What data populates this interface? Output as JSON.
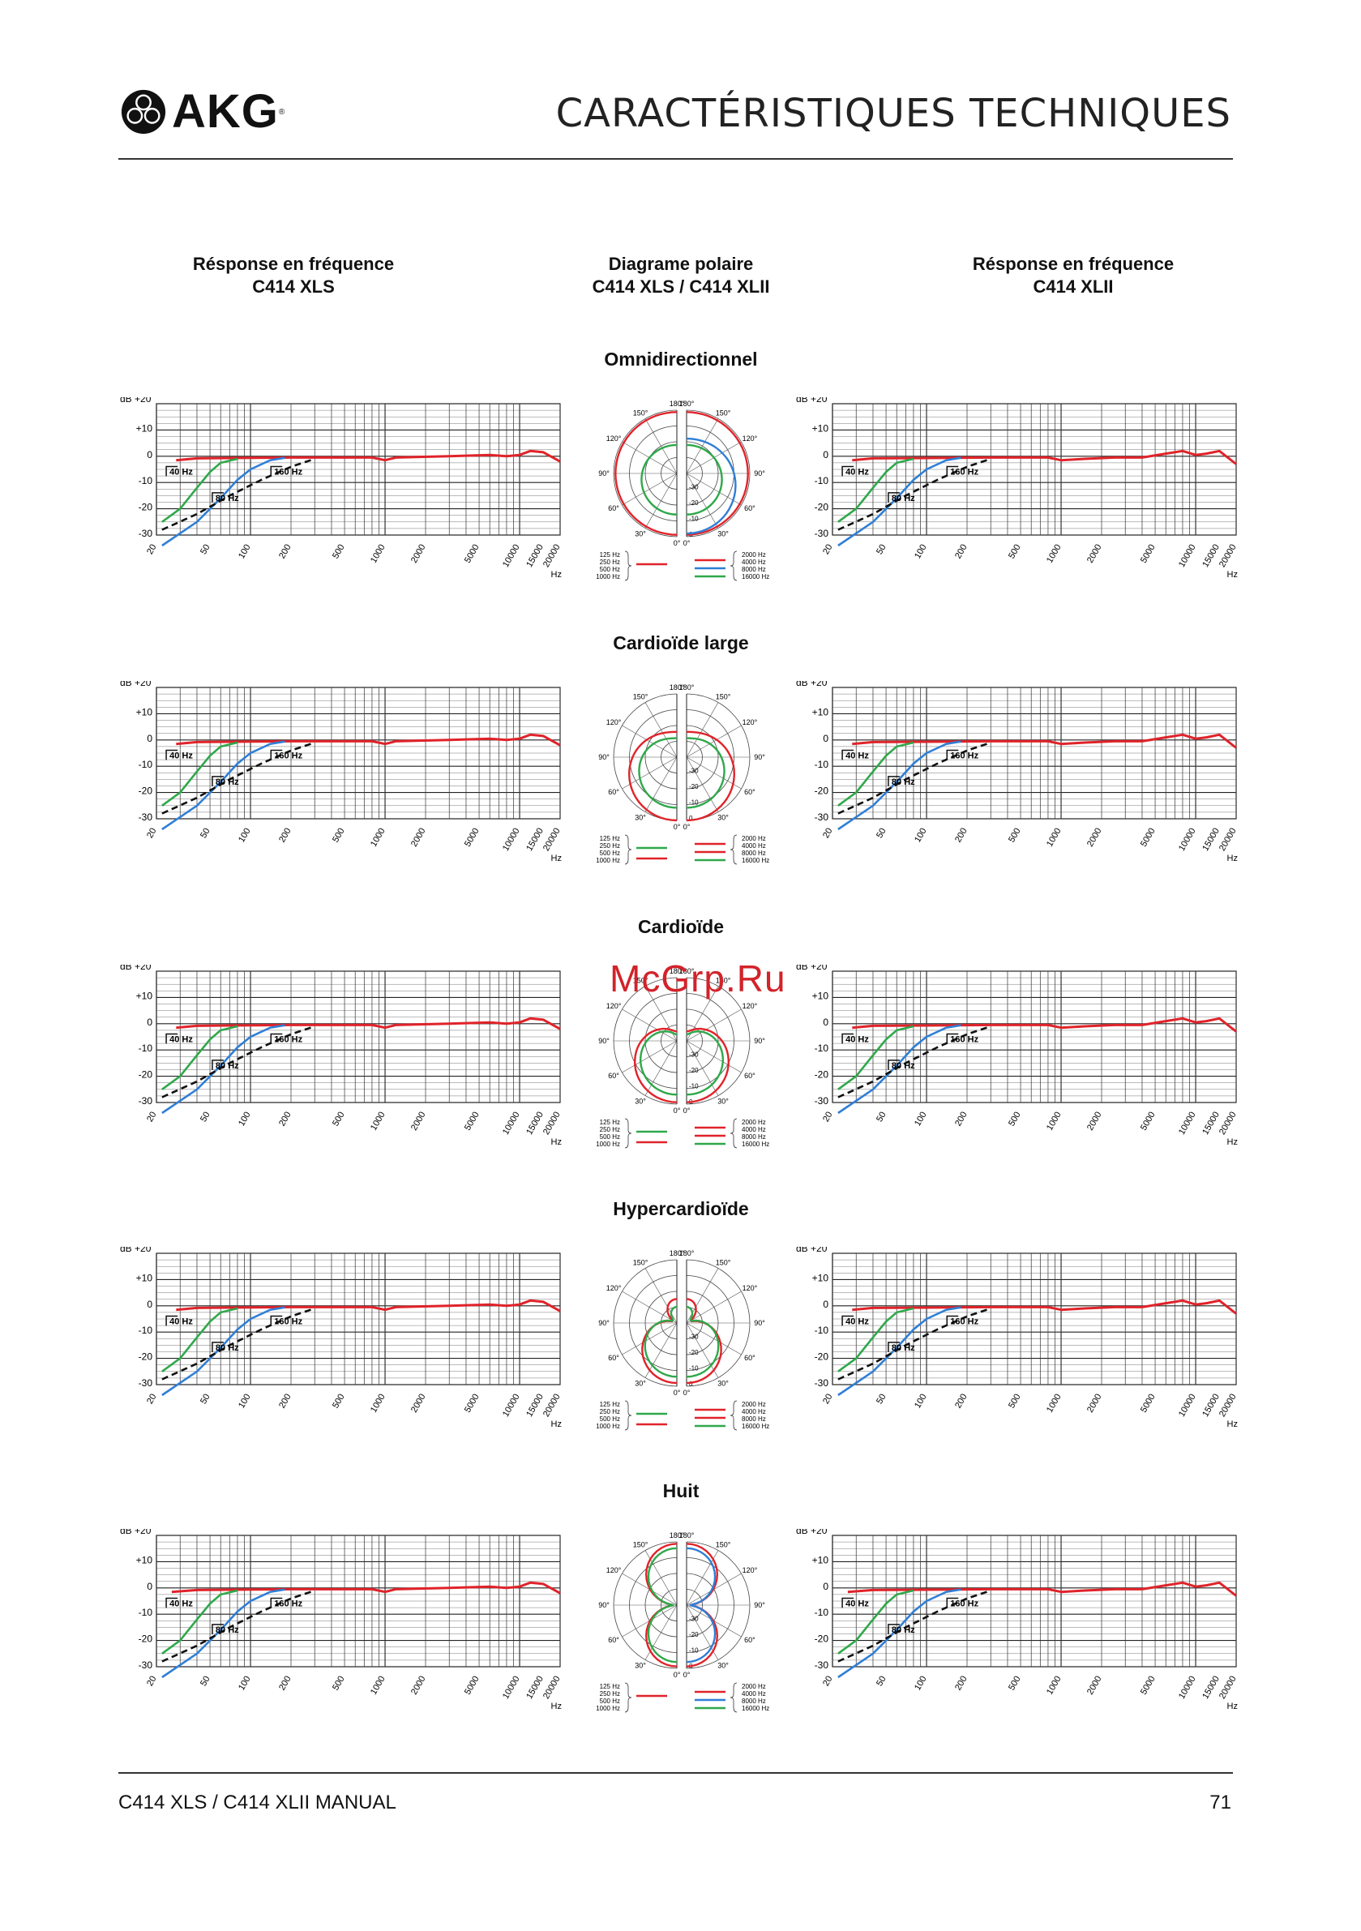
{
  "header": {
    "brand": "AKG",
    "brand_mark": "®",
    "title": "CARACTÉRISTIQUES TECHNIQUES"
  },
  "columns": {
    "left": {
      "line1": "Résponse en fréquence",
      "line2": "C414 XLS"
    },
    "center": {
      "line1": "Diagrame polaire",
      "line2": "C414 XLS / C414 XLII"
    },
    "right": {
      "line1": "Résponse en fréquence",
      "line2": "C414 XLII"
    }
  },
  "sections": [
    {
      "title": "Omnidirectionnel"
    },
    {
      "title": "Cardioïde large"
    },
    {
      "title": "Cardioïde"
    },
    {
      "title": "Hypercardioïde"
    },
    {
      "title": "Huit"
    }
  ],
  "freq_axis": {
    "db_labels": [
      "dB  +20",
      "+10",
      "0",
      "-10",
      "-20",
      "-30"
    ],
    "ticks": [
      "20",
      "50",
      "100",
      "200",
      "500",
      "1000",
      "2000",
      "5000",
      "10000",
      "15000",
      "20000"
    ],
    "unit": "Hz",
    "filter_labels": [
      "40 Hz",
      "80 Hz",
      "160 Hz"
    ]
  },
  "polar_axis": {
    "angles_left": [
      "180°",
      "150°",
      "120°",
      "90°",
      "60°",
      "30°",
      "0°"
    ],
    "angles_right": [
      "180°",
      "150°",
      "120°",
      "90°",
      "60°",
      "30°",
      "0°"
    ],
    "rings": [
      "-30",
      "-20",
      "-10",
      "0"
    ],
    "legend_left": [
      "125 Hz",
      "250 Hz",
      "500 Hz",
      "1000 Hz"
    ],
    "legend_right": [
      "2000 Hz",
      "4000 Hz",
      "8000 Hz",
      "16000 Hz"
    ]
  },
  "colors": {
    "red": "#e0232a",
    "blue": "#2f7fd6",
    "green": "#2fa84a",
    "black": "#111111"
  },
  "watermark": "McGrp.Ru",
  "footer": {
    "manual": "C414 XLS / C414 XLII MANUAL",
    "page": "71"
  }
}
